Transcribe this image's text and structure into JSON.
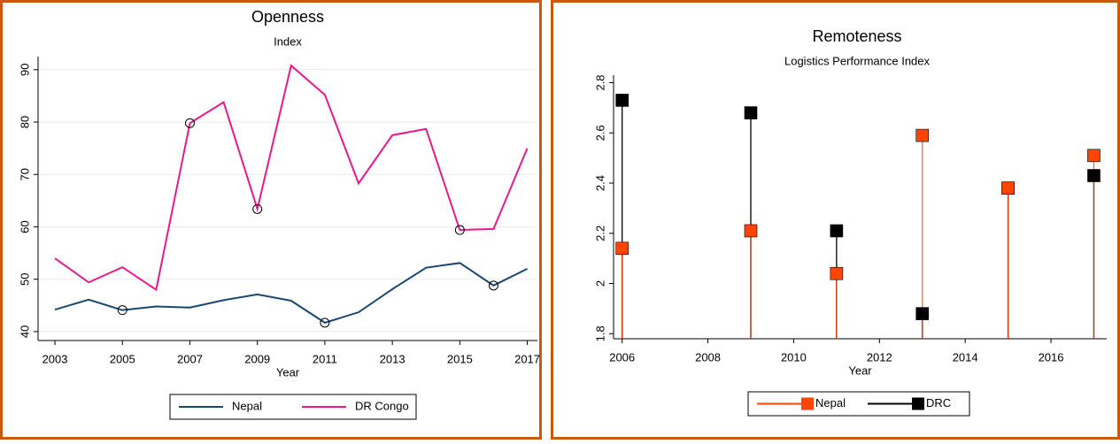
{
  "chart_data": [
    {
      "type": "line",
      "title": "Openness",
      "subtitle": "Index",
      "x_label": "Year",
      "x": [
        2003,
        2004,
        2005,
        2006,
        2007,
        2008,
        2009,
        2010,
        2011,
        2012,
        2013,
        2014,
        2015,
        2016,
        2017
      ],
      "series": [
        {
          "name": "Nepal",
          "color": "#1a476f",
          "values": [
            44.2,
            46.1,
            44.1,
            44.8,
            44.6,
            46.0,
            47.1,
            45.9,
            41.7,
            43.7,
            48.1,
            52.2,
            53.1,
            48.8,
            52.0
          ],
          "circled_x": [
            2005,
            2011,
            2016
          ]
        },
        {
          "name": "DR Congo",
          "color": "#e8198b",
          "values": [
            54.0,
            49.4,
            52.3,
            48.0,
            79.8,
            83.8,
            63.4,
            90.8,
            85.2,
            68.3,
            77.5,
            78.7,
            59.4,
            59.6,
            75.0
          ],
          "circled_x": [
            2007,
            2009,
            2015
          ]
        }
      ],
      "xlim": [
        2002.5,
        2017.3
      ],
      "xticks": [
        2003,
        2005,
        2007,
        2009,
        2011,
        2013,
        2015,
        2017
      ],
      "ylim": [
        38.3,
        92.5
      ],
      "yticks": [
        40,
        50,
        60,
        70,
        80,
        90
      ],
      "grid": true,
      "legend": "bottom"
    },
    {
      "type": "dropline",
      "title": "Remoteness",
      "subtitle": "Logistics Performance Index",
      "x_label": "Year",
      "x": [
        2006,
        2009,
        2011,
        2013,
        2015,
        2017
      ],
      "series": [
        {
          "name": "DRC",
          "color": "#000000",
          "values": [
            2.73,
            2.68,
            2.21,
            1.88,
            2.38,
            2.43
          ]
        },
        {
          "name": "Nepal",
          "color": "#ff4500",
          "values": [
            2.14,
            2.21,
            2.04,
            2.59,
            2.38,
            2.51
          ]
        }
      ],
      "legend_order": [
        1,
        0
      ],
      "xlim": [
        2005.8,
        2017.3
      ],
      "xticks": [
        2006,
        2008,
        2010,
        2012,
        2014,
        2016
      ],
      "ylim": [
        1.78,
        2.83
      ],
      "yticks": [
        1.8,
        2,
        2.2,
        2.4,
        2.6,
        2.8
      ],
      "grid": false,
      "legend": "bottom"
    }
  ]
}
